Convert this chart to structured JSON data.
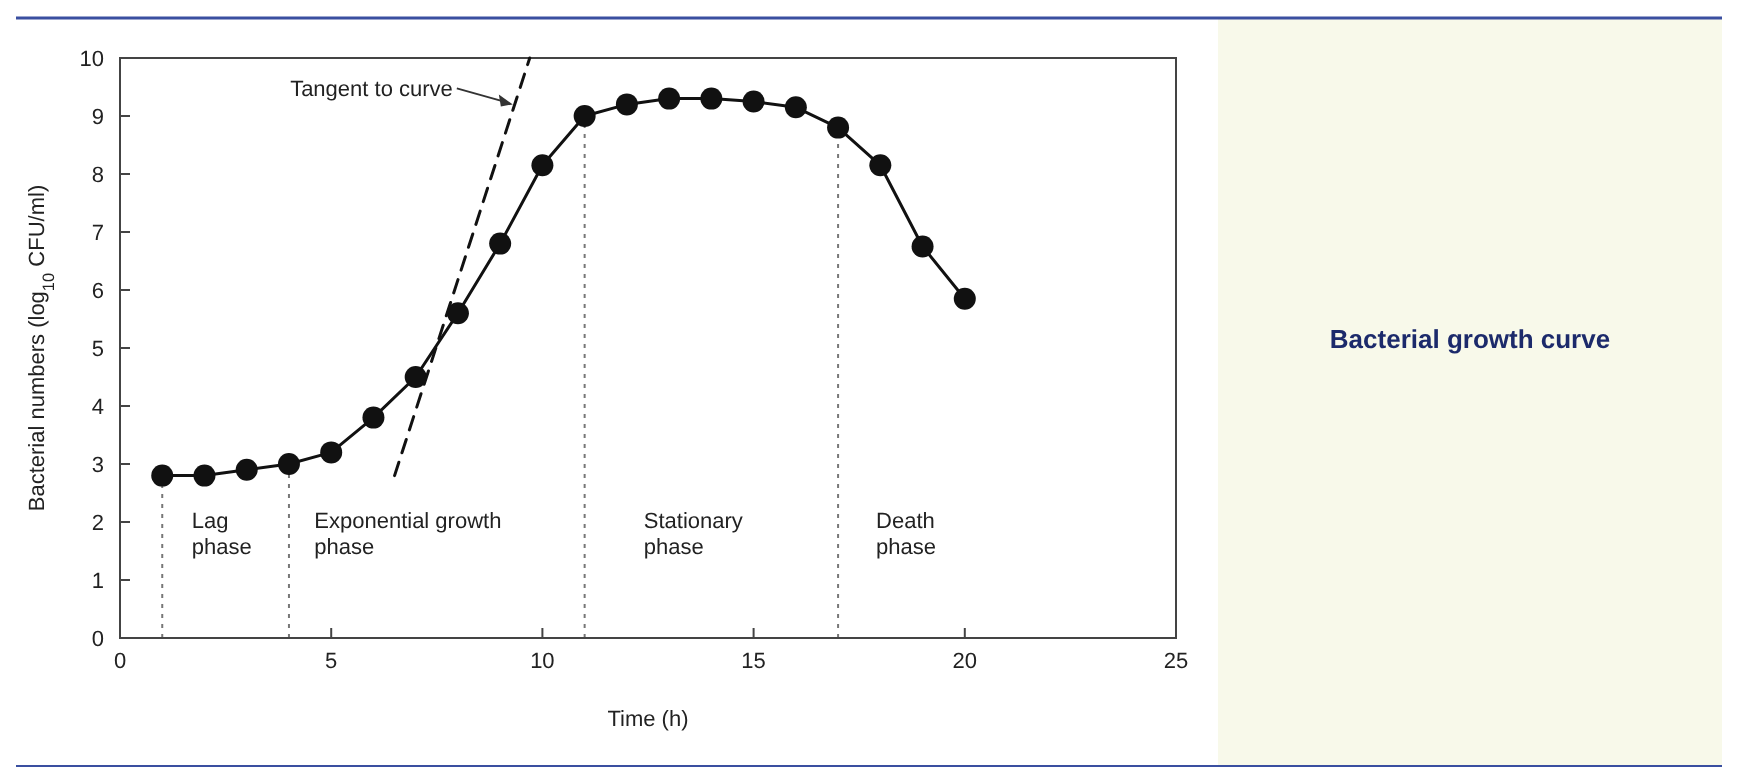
{
  "chart_data": {
    "type": "line",
    "title": "Bacterial growth curve",
    "xlabel": "Time (h)",
    "ylabel": "Bacterial numbers (log$_{10}$ CFU/ml)",
    "x": [
      1,
      2,
      3,
      4,
      5,
      6,
      7,
      8,
      9,
      10,
      11,
      12,
      13,
      14,
      15,
      16,
      17,
      18,
      19,
      20
    ],
    "series": [
      {
        "color": "#111111",
        "marker": "circle",
        "line_style": "solid",
        "values": [
          2.8,
          2.8,
          2.9,
          3.0,
          3.2,
          3.8,
          4.5,
          5.6,
          6.8,
          8.15,
          9.0,
          9.2,
          9.3,
          9.3,
          9.25,
          9.15,
          8.8,
          8.15,
          6.75,
          5.85
        ]
      },
      {
        "color": "#111111",
        "marker": "none",
        "line_style": "dashed",
        "x": [
          6.5,
          9.7
        ],
        "values": [
          2.8,
          10
        ]
      }
    ],
    "xlim": [
      0,
      25
    ],
    "xticks": [
      0,
      5,
      10,
      15,
      20,
      25
    ],
    "ylim": [
      0,
      10
    ],
    "yticks": [
      0,
      1,
      2,
      3,
      4,
      5,
      6,
      7,
      8,
      9,
      10
    ],
    "grid": false,
    "ref_lines": [
      {
        "axis": "x",
        "value": 1,
        "line_style": "dotted",
        "color": "#777777"
      },
      {
        "axis": "x",
        "value": 4,
        "line_style": "dotted",
        "color": "#777777"
      },
      {
        "axis": "x",
        "value": 11,
        "line_style": "dotted",
        "color": "#777777"
      },
      {
        "axis": "x",
        "value": 17,
        "line_style": "dotted",
        "color": "#777777"
      }
    ],
    "annotations": [
      "Tangent to curve",
      "Lag\nphase",
      "Exponential growth\nphase",
      "Stationary\nphase",
      "Death\nphase"
    ]
  }
}
